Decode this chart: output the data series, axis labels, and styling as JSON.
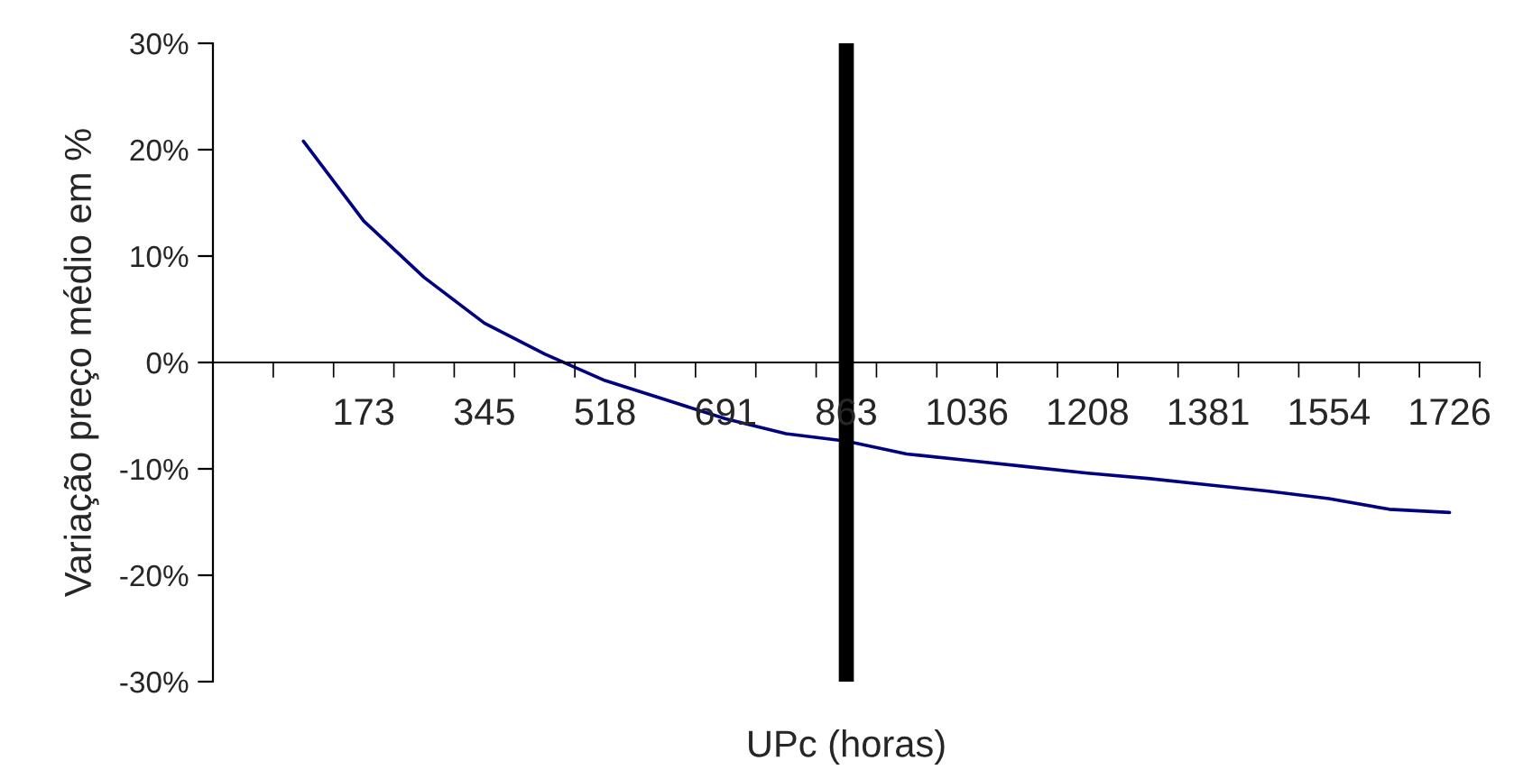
{
  "chart_data": {
    "type": "line",
    "xlabel": "UPc (horas)",
    "ylabel": "Variação preço médio em %",
    "categories": [
      null,
      null,
      "173",
      null,
      "345",
      null,
      "518",
      null,
      "691",
      null,
      "863",
      null,
      "1036",
      null,
      "1208",
      null,
      "1381",
      null,
      "1554",
      null,
      "1726"
    ],
    "series": [
      {
        "color": "#000080",
        "values": [
          null,
          20.8,
          13.3,
          8.0,
          3.7,
          0.8,
          -1.7,
          -3.5,
          -5.3,
          -6.7,
          -7.4,
          -8.6,
          -9.2,
          -9.8,
          -10.4,
          -10.9,
          -11.5,
          -12.1,
          -12.8,
          -13.8,
          -14.1
        ]
      }
    ],
    "ylim": [
      -30,
      30
    ],
    "yticks": [
      {
        "value": -30,
        "label": "-30%"
      },
      {
        "value": -20,
        "label": "-20%"
      },
      {
        "value": -10,
        "label": "-10%"
      },
      {
        "value": 0,
        "label": "0%"
      },
      {
        "value": 10,
        "label": "10%"
      },
      {
        "value": 20,
        "label": "20%"
      },
      {
        "value": 30,
        "label": "30%"
      }
    ],
    "ref_lines": [
      {
        "axis": "x",
        "value": "863",
        "color": "#000000"
      }
    ],
    "grid": false,
    "legend": false,
    "marker": "none",
    "line_style": "solid"
  }
}
